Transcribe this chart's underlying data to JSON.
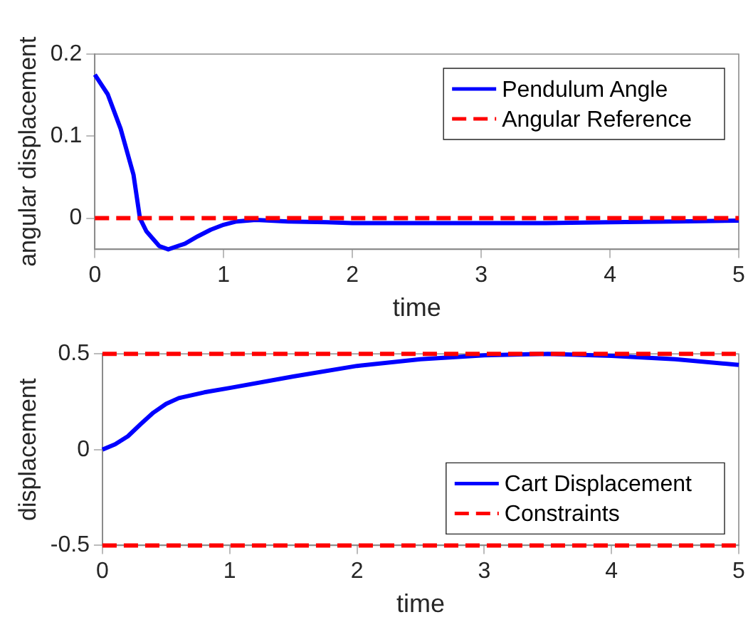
{
  "chart_data": [
    {
      "type": "line",
      "xlabel": "time",
      "ylabel": "angular displacement",
      "x": [
        0,
        0.1,
        0.2,
        0.3,
        0.35,
        0.4,
        0.5,
        0.57,
        0.7,
        0.8,
        0.9,
        1.0,
        1.1,
        1.25,
        1.5,
        1.8,
        2.0,
        2.5,
        3.0,
        3.5,
        4.0,
        4.5,
        5.0
      ],
      "series": [
        {
          "name": "Pendulum Angle",
          "color": "#0000ff",
          "values": [
            0.175,
            0.151,
            0.109,
            0.053,
            0.0,
            -0.016,
            -0.034,
            -0.038,
            -0.031,
            -0.022,
            -0.014,
            -0.008,
            -0.004,
            -0.002,
            -0.004,
            -0.005,
            -0.006,
            -0.006,
            -0.006,
            -0.006,
            -0.005,
            -0.004,
            -0.003
          ]
        }
      ],
      "ref_lines": [
        {
          "axis": "y",
          "value": 0,
          "label": "Angular Reference",
          "color": "#ff0000",
          "line_style": "dashed"
        }
      ],
      "xlim": [
        0,
        5
      ],
      "xticks": [
        0,
        1,
        2,
        3,
        4,
        5
      ],
      "ylim": [
        -0.038,
        0.2
      ],
      "yticks": [
        0,
        0.1,
        0.2
      ],
      "grid": false,
      "legend": "top right"
    },
    {
      "type": "line",
      "xlabel": "time",
      "ylabel": "displacement",
      "x": [
        0,
        0.1,
        0.2,
        0.3,
        0.4,
        0.5,
        0.6,
        0.8,
        1.0,
        1.5,
        2.0,
        2.5,
        3.0,
        3.5,
        4.0,
        4.5,
        5.0
      ],
      "series": [
        {
          "name": "Cart Displacement",
          "color": "#0000ff",
          "values": [
            0,
            0.028,
            0.07,
            0.133,
            0.193,
            0.239,
            0.269,
            0.299,
            0.322,
            0.382,
            0.437,
            0.472,
            0.492,
            0.5,
            0.49,
            0.472,
            0.442
          ]
        }
      ],
      "ref_lines": [
        {
          "axis": "y",
          "value": 0.5,
          "label": "Constraints",
          "color": "#ff0000",
          "line_style": "dashed"
        },
        {
          "axis": "y",
          "value": -0.5,
          "color": "#ff0000",
          "line_style": "dashed"
        }
      ],
      "xlim": [
        0,
        5
      ],
      "xticks": [
        0,
        1,
        2,
        3,
        4,
        5
      ],
      "ylim": [
        -0.5,
        0.5
      ],
      "yticks": [
        -0.5,
        0,
        0.5
      ],
      "grid": false,
      "legend": "bottom right"
    }
  ]
}
